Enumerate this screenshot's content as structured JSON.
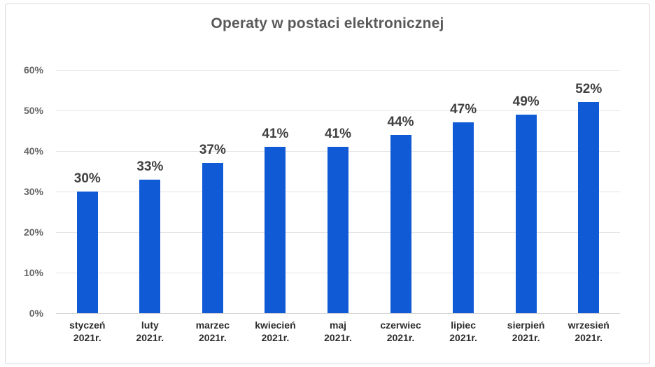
{
  "chart_data": {
    "type": "bar",
    "title": "Operaty w postaci elektronicznej",
    "categories": [
      "styczeń",
      "luty",
      "marzec",
      "kwiecień",
      "maj",
      "czerwiec",
      "lipiec",
      "sierpień",
      "wrzesień"
    ],
    "category_second_line": "2021r.",
    "values": [
      30,
      33,
      37,
      41,
      41,
      44,
      47,
      49,
      52
    ],
    "data_label_suffix": "%",
    "data_labels": [
      "30%",
      "33%",
      "37%",
      "41%",
      "41%",
      "44%",
      "47%",
      "49%",
      "52%"
    ],
    "xlabel": "",
    "ylabel": "",
    "ylim": [
      0,
      60
    ],
    "yticks": [
      0,
      10,
      20,
      30,
      40,
      50,
      60
    ],
    "ytick_labels": [
      "0%",
      "10%",
      "20%",
      "30%",
      "40%",
      "50%",
      "60%"
    ],
    "grid": true,
    "legend": "none",
    "colors": {
      "bar": "#115ad6",
      "title_text": "#595959",
      "data_label_text": "#404040",
      "axis_label_text": "#2d2d2d",
      "ytick_text": "#666666",
      "gridline": "#e3e3e3",
      "frame_border": "#d9d9d9",
      "background": "#ffffff"
    }
  }
}
